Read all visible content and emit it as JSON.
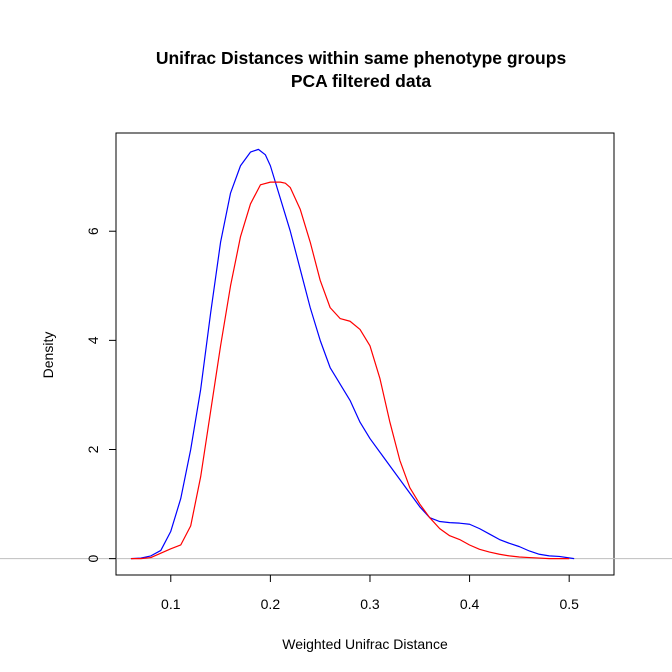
{
  "chart_data": {
    "type": "line",
    "title": [
      "Unifrac Distances within same phenotype groups",
      "PCA filtered data"
    ],
    "xlabel": "Weighted Unifrac Distance",
    "ylabel": "Density",
    "xlim": [
      0.045,
      0.545
    ],
    "ylim": [
      -0.3,
      7.8
    ],
    "xticks": [
      0.1,
      0.2,
      0.3,
      0.4,
      0.5
    ],
    "xtick_labels": [
      "0.1",
      "0.2",
      "0.3",
      "0.4",
      "0.5"
    ],
    "yticks": [
      0,
      2,
      4,
      6
    ],
    "ytick_labels": [
      "0",
      "2",
      "4",
      "6"
    ],
    "grid": false,
    "legend": "none",
    "hline": {
      "y": 0,
      "color": "#bebebe"
    },
    "series": [
      {
        "color": "#0000ff",
        "x": [
          0.06,
          0.07,
          0.08,
          0.09,
          0.1,
          0.11,
          0.12,
          0.13,
          0.14,
          0.15,
          0.16,
          0.17,
          0.18,
          0.188,
          0.195,
          0.2,
          0.21,
          0.22,
          0.23,
          0.24,
          0.25,
          0.26,
          0.27,
          0.28,
          0.29,
          0.3,
          0.31,
          0.32,
          0.33,
          0.34,
          0.35,
          0.36,
          0.37,
          0.38,
          0.39,
          0.4,
          0.41,
          0.42,
          0.43,
          0.44,
          0.45,
          0.46,
          0.47,
          0.48,
          0.49,
          0.505
        ],
        "y": [
          0.0,
          0.01,
          0.05,
          0.15,
          0.5,
          1.1,
          2.0,
          3.1,
          4.5,
          5.8,
          6.7,
          7.2,
          7.45,
          7.5,
          7.4,
          7.2,
          6.6,
          6.0,
          5.3,
          4.6,
          4.0,
          3.5,
          3.2,
          2.9,
          2.5,
          2.2,
          1.95,
          1.7,
          1.45,
          1.2,
          0.95,
          0.75,
          0.68,
          0.66,
          0.65,
          0.63,
          0.55,
          0.45,
          0.35,
          0.28,
          0.22,
          0.14,
          0.08,
          0.05,
          0.04,
          0.0
        ]
      },
      {
        "color": "#ff0000",
        "x": [
          0.06,
          0.07,
          0.08,
          0.09,
          0.1,
          0.11,
          0.12,
          0.13,
          0.14,
          0.15,
          0.16,
          0.17,
          0.18,
          0.19,
          0.2,
          0.21,
          0.215,
          0.22,
          0.23,
          0.24,
          0.25,
          0.26,
          0.27,
          0.28,
          0.29,
          0.3,
          0.31,
          0.32,
          0.33,
          0.34,
          0.35,
          0.36,
          0.37,
          0.38,
          0.39,
          0.4,
          0.41,
          0.42,
          0.43,
          0.44,
          0.45,
          0.46,
          0.47,
          0.48,
          0.49,
          0.5
        ],
        "y": [
          0.0,
          0.0,
          0.02,
          0.1,
          0.18,
          0.25,
          0.6,
          1.5,
          2.7,
          3.9,
          5.0,
          5.9,
          6.5,
          6.85,
          6.9,
          6.9,
          6.88,
          6.8,
          6.4,
          5.8,
          5.1,
          4.6,
          4.4,
          4.35,
          4.2,
          3.9,
          3.3,
          2.5,
          1.8,
          1.3,
          1.0,
          0.75,
          0.55,
          0.42,
          0.35,
          0.25,
          0.17,
          0.12,
          0.08,
          0.05,
          0.03,
          0.02,
          0.01,
          0.0,
          0.0,
          0.0
        ]
      }
    ]
  }
}
